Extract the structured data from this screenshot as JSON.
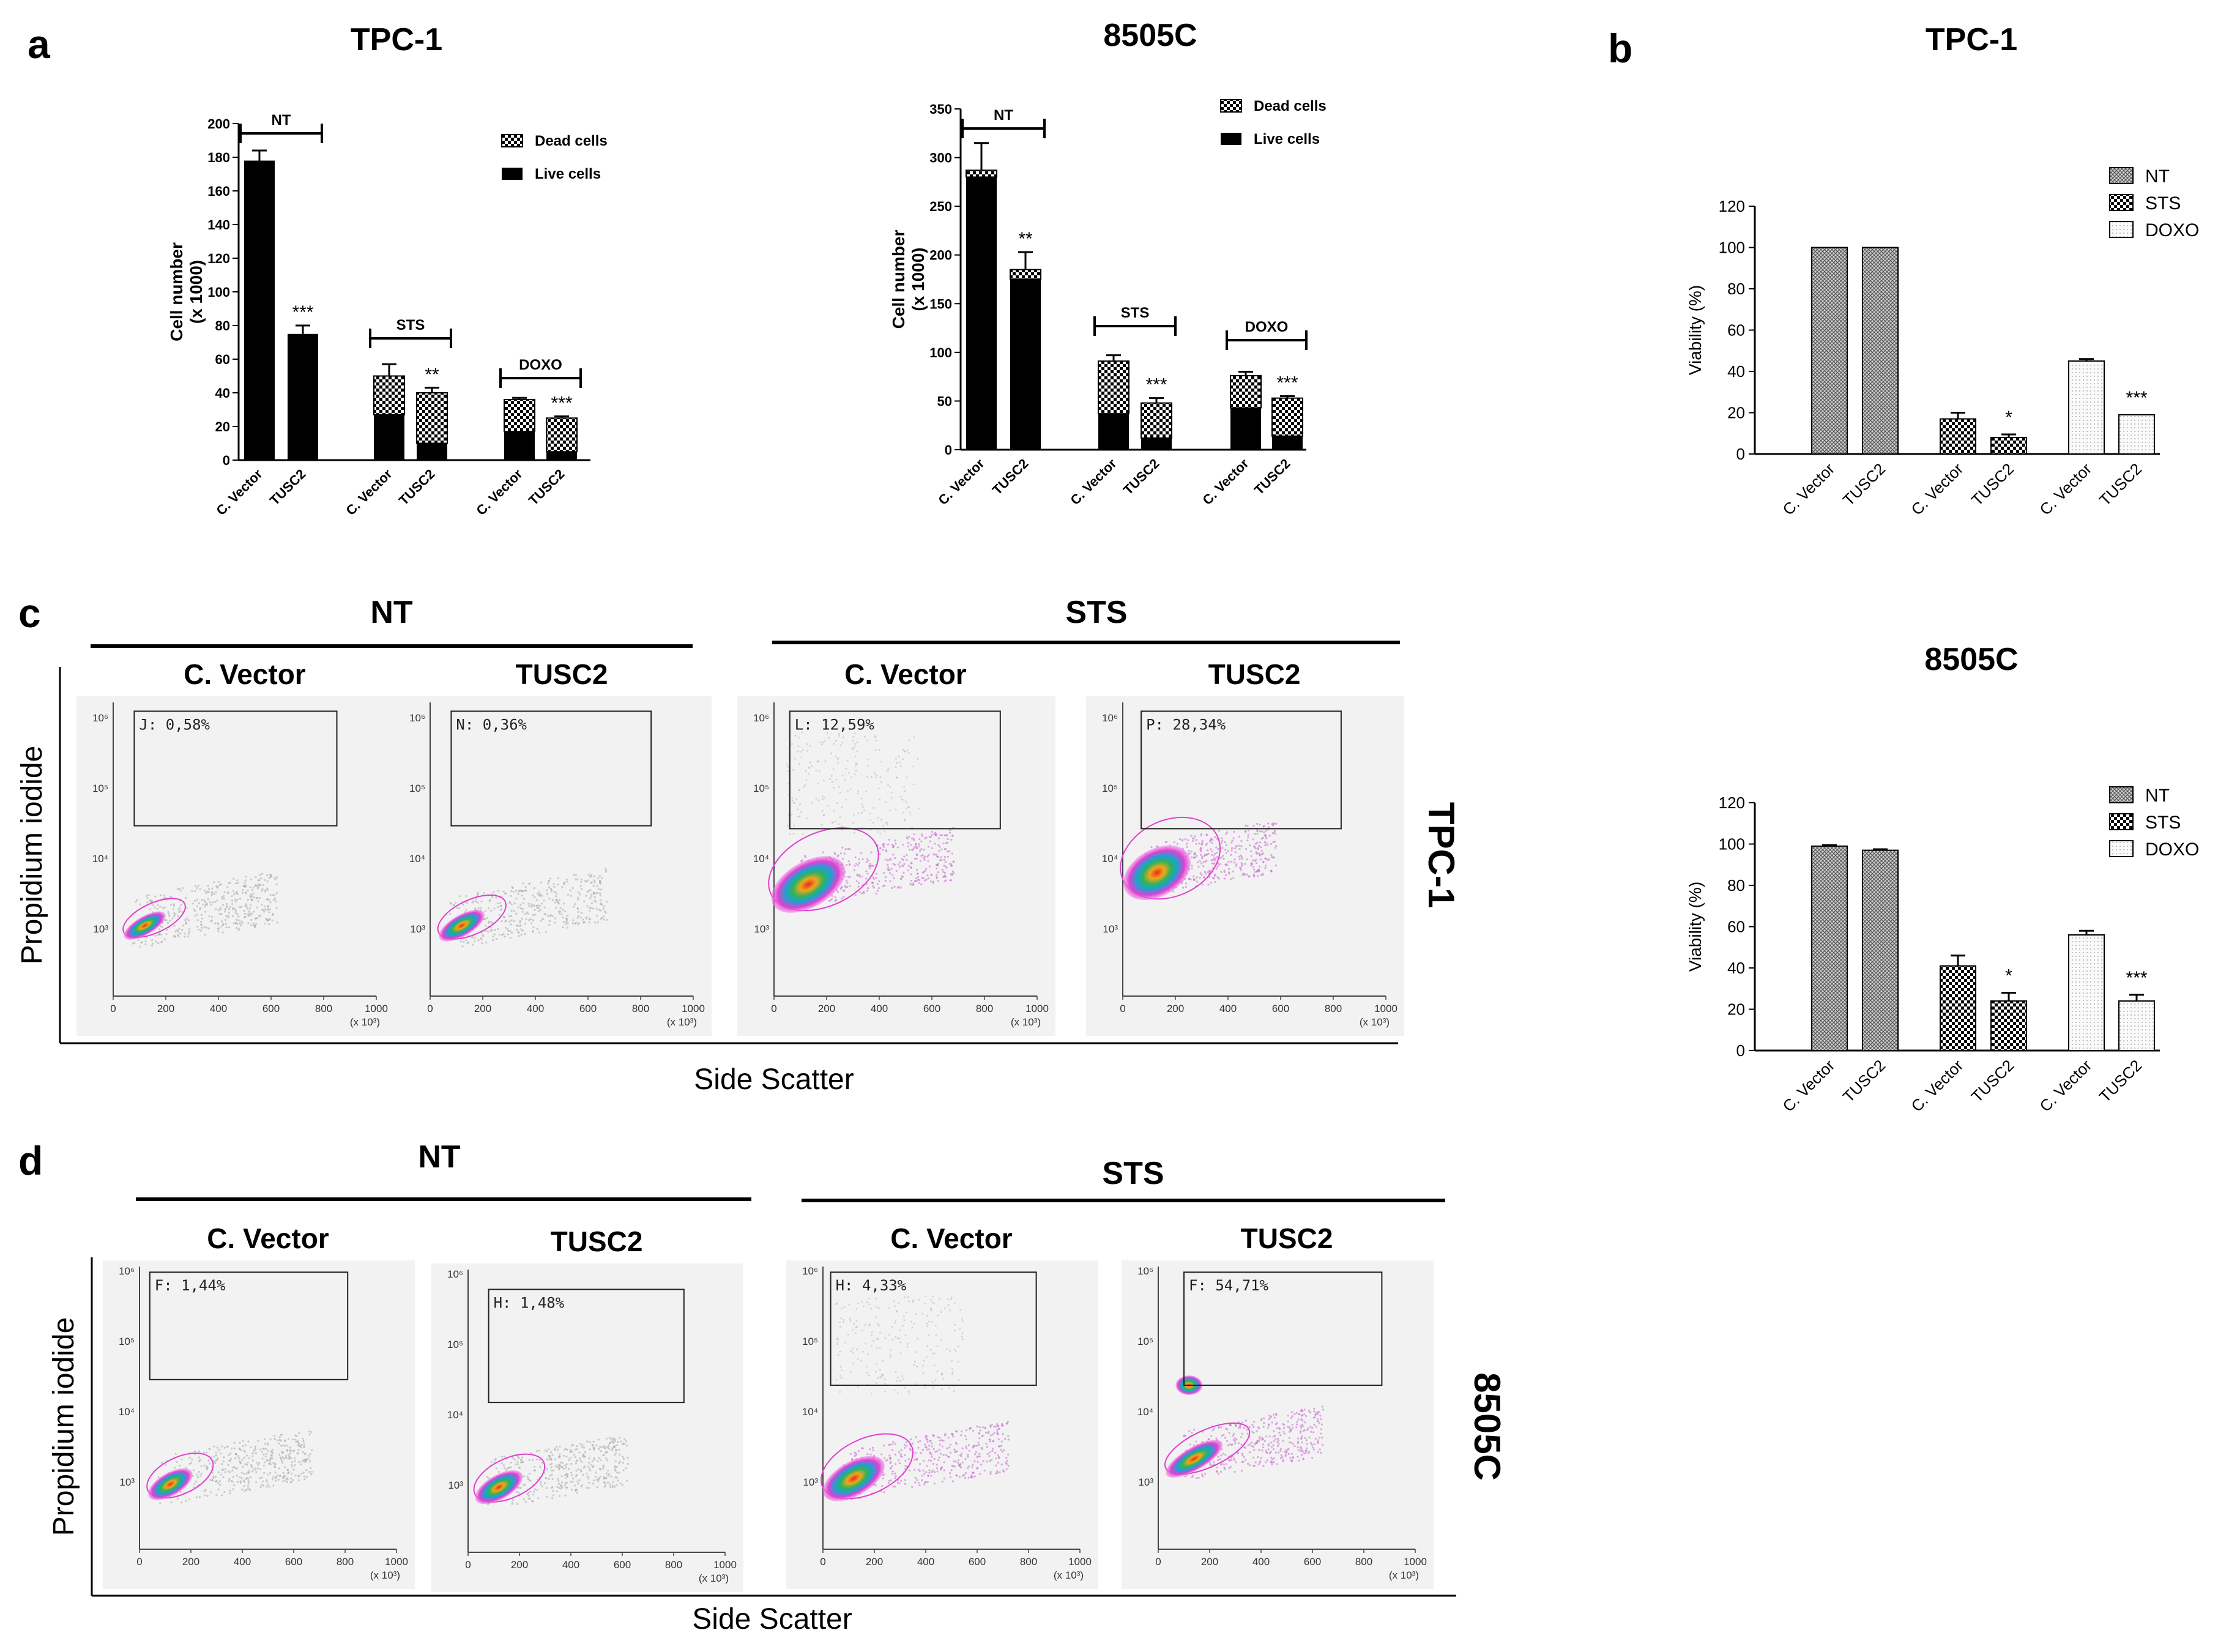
{
  "panels": {
    "a": "a",
    "b": "b",
    "c": "c",
    "d": "d"
  },
  "colors": {
    "live": "#000000",
    "outline": "#000000",
    "flow_gray": "#bdbdbd",
    "flow_bg": "#f2f2f2"
  },
  "chart_data": [
    {
      "id": "a_tpc1",
      "type": "bar",
      "stacked": true,
      "title": "TPC-1",
      "ylabel_line1": "Cell number",
      "ylabel_line2": "(x 1000)",
      "ylim": [
        0,
        200
      ],
      "yticks": [
        0,
        20,
        40,
        60,
        80,
        100,
        120,
        140,
        160,
        180,
        200
      ],
      "categories": [
        "C. Vector",
        "TUSC2",
        "C. Vector",
        "TUSC2",
        "C. Vector",
        "TUSC2"
      ],
      "groups": [
        "NT",
        "STS",
        "DOXO"
      ],
      "legend": [
        "Dead cells",
        "Live cells"
      ],
      "series": [
        {
          "name": "Live cells",
          "values": [
            178,
            75,
            27,
            10,
            17,
            5
          ]
        },
        {
          "name": "Dead cells",
          "values": [
            0,
            0,
            23,
            30,
            19,
            20
          ]
        }
      ],
      "errors": [
        6,
        5,
        7,
        3,
        1,
        1
      ],
      "significance": [
        "",
        "***",
        "",
        "**",
        "",
        "***"
      ]
    },
    {
      "id": "a_8505c",
      "type": "bar",
      "stacked": true,
      "title": "8505C",
      "ylabel_line1": "Cell number",
      "ylabel_line2": "(x 1000)",
      "ylim": [
        0,
        350
      ],
      "yticks": [
        0,
        50,
        100,
        150,
        200,
        250,
        300,
        350
      ],
      "categories": [
        "C. Vector",
        "TUSC2",
        "C. Vector",
        "TUSC2",
        "C. Vector",
        "TUSC2"
      ],
      "groups": [
        "NT",
        "STS",
        "DOXO"
      ],
      "legend": [
        "Dead cells",
        "Live cells"
      ],
      "series": [
        {
          "name": "Live cells",
          "values": [
            280,
            175,
            37,
            12,
            43,
            14
          ]
        },
        {
          "name": "Dead cells",
          "values": [
            7,
            10,
            54,
            36,
            33,
            39
          ]
        }
      ],
      "errors": [
        28,
        18,
        6,
        5,
        4,
        2
      ],
      "significance": [
        "",
        "**",
        "",
        "***",
        "",
        "***"
      ]
    },
    {
      "id": "b_tpc1",
      "type": "bar",
      "title": "TPC-1",
      "ylabel": "Viability (%)",
      "ylim": [
        0,
        120
      ],
      "yticks": [
        0,
        20,
        40,
        60,
        80,
        100,
        120
      ],
      "categories": [
        "C. Vector",
        "TUSC2",
        "C. Vector",
        "TUSC2",
        "C. Vector",
        "TUSC2"
      ],
      "legend": [
        "NT",
        "STS",
        "DOXO"
      ],
      "values": [
        100,
        100,
        17,
        8,
        45,
        19
      ],
      "errors": [
        0,
        0,
        3,
        1.5,
        1,
        0
      ],
      "significance": [
        "",
        "",
        "",
        "*",
        "",
        "***"
      ]
    },
    {
      "id": "b_8505c",
      "type": "bar",
      "title": "8505C",
      "ylabel": "Viability (%)",
      "ylim": [
        0,
        120
      ],
      "yticks": [
        0,
        20,
        40,
        60,
        80,
        100,
        120
      ],
      "categories": [
        "C. Vector",
        "TUSC2",
        "C. Vector",
        "TUSC2",
        "C. Vector",
        "TUSC2"
      ],
      "legend": [
        "NT",
        "STS",
        "DOXO"
      ],
      "values": [
        99,
        97,
        41,
        24,
        56,
        24
      ],
      "errors": [
        0.5,
        0.5,
        5,
        4,
        2,
        3
      ],
      "significance": [
        "",
        "",
        "",
        "*",
        "",
        "***"
      ]
    },
    {
      "id": "c_flow",
      "type": "scatter",
      "groups": [
        "NT",
        "STS"
      ],
      "columns": [
        "C. Vector",
        "TUSC2",
        "C. Vector",
        "TUSC2"
      ],
      "gates": [
        "J: 0,58%",
        "N: 0,36%",
        "L: 12,59%",
        "P: 28,34%"
      ],
      "ylabel": "Propidium iodide",
      "xlabel": "Side Scatter",
      "side_label": "TPC-1",
      "xticks": [
        "0",
        "200",
        "400",
        "600",
        "800",
        "1000"
      ],
      "x_unit": "(x 10³)",
      "yticks": [
        "10³",
        "10⁴",
        "10⁵",
        "10⁶"
      ]
    },
    {
      "id": "d_flow",
      "type": "scatter",
      "groups": [
        "NT",
        "STS"
      ],
      "columns": [
        "C. Vector",
        "TUSC2",
        "C. Vector",
        "TUSC2"
      ],
      "gates": [
        "F: 1,44%",
        "H: 1,48%",
        "H: 4,33%",
        "F: 54,71%"
      ],
      "ylabel": "Propidium iodide",
      "xlabel": "Side Scatter",
      "side_label": "8505C",
      "xticks": [
        "0",
        "200",
        "400",
        "600",
        "800",
        "1000"
      ],
      "x_unit": "(x 10³)",
      "yticks": [
        "10³",
        "10⁴",
        "10⁵",
        "10⁶"
      ]
    }
  ]
}
